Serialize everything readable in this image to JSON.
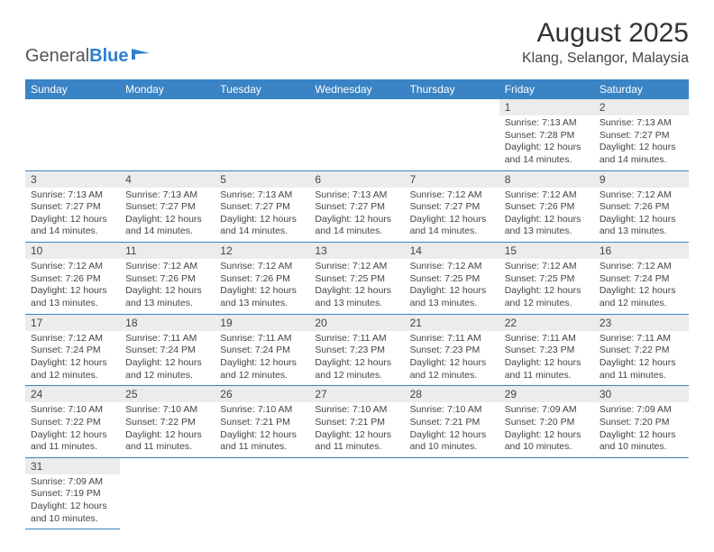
{
  "logo": {
    "part1": "General",
    "part2": "Blue"
  },
  "title": "August 2025",
  "location": "Klang, Selangor, Malaysia",
  "colors": {
    "header_bg": "#3a83c4",
    "header_text": "#ffffff",
    "daynum_bg": "#ececec",
    "border": "#3a83c4",
    "logo_accent": "#2f7fd1"
  },
  "daysOfWeek": [
    "Sunday",
    "Monday",
    "Tuesday",
    "Wednesday",
    "Thursday",
    "Friday",
    "Saturday"
  ],
  "weeks": [
    [
      {
        "n": "",
        "lines": []
      },
      {
        "n": "",
        "lines": []
      },
      {
        "n": "",
        "lines": []
      },
      {
        "n": "",
        "lines": []
      },
      {
        "n": "",
        "lines": []
      },
      {
        "n": "1",
        "lines": [
          "Sunrise: 7:13 AM",
          "Sunset: 7:28 PM",
          "Daylight: 12 hours and 14 minutes."
        ]
      },
      {
        "n": "2",
        "lines": [
          "Sunrise: 7:13 AM",
          "Sunset: 7:27 PM",
          "Daylight: 12 hours and 14 minutes."
        ]
      }
    ],
    [
      {
        "n": "3",
        "lines": [
          "Sunrise: 7:13 AM",
          "Sunset: 7:27 PM",
          "Daylight: 12 hours and 14 minutes."
        ]
      },
      {
        "n": "4",
        "lines": [
          "Sunrise: 7:13 AM",
          "Sunset: 7:27 PM",
          "Daylight: 12 hours and 14 minutes."
        ]
      },
      {
        "n": "5",
        "lines": [
          "Sunrise: 7:13 AM",
          "Sunset: 7:27 PM",
          "Daylight: 12 hours and 14 minutes."
        ]
      },
      {
        "n": "6",
        "lines": [
          "Sunrise: 7:13 AM",
          "Sunset: 7:27 PM",
          "Daylight: 12 hours and 14 minutes."
        ]
      },
      {
        "n": "7",
        "lines": [
          "Sunrise: 7:12 AM",
          "Sunset: 7:27 PM",
          "Daylight: 12 hours and 14 minutes."
        ]
      },
      {
        "n": "8",
        "lines": [
          "Sunrise: 7:12 AM",
          "Sunset: 7:26 PM",
          "Daylight: 12 hours and 13 minutes."
        ]
      },
      {
        "n": "9",
        "lines": [
          "Sunrise: 7:12 AM",
          "Sunset: 7:26 PM",
          "Daylight: 12 hours and 13 minutes."
        ]
      }
    ],
    [
      {
        "n": "10",
        "lines": [
          "Sunrise: 7:12 AM",
          "Sunset: 7:26 PM",
          "Daylight: 12 hours and 13 minutes."
        ]
      },
      {
        "n": "11",
        "lines": [
          "Sunrise: 7:12 AM",
          "Sunset: 7:26 PM",
          "Daylight: 12 hours and 13 minutes."
        ]
      },
      {
        "n": "12",
        "lines": [
          "Sunrise: 7:12 AM",
          "Sunset: 7:26 PM",
          "Daylight: 12 hours and 13 minutes."
        ]
      },
      {
        "n": "13",
        "lines": [
          "Sunrise: 7:12 AM",
          "Sunset: 7:25 PM",
          "Daylight: 12 hours and 13 minutes."
        ]
      },
      {
        "n": "14",
        "lines": [
          "Sunrise: 7:12 AM",
          "Sunset: 7:25 PM",
          "Daylight: 12 hours and 13 minutes."
        ]
      },
      {
        "n": "15",
        "lines": [
          "Sunrise: 7:12 AM",
          "Sunset: 7:25 PM",
          "Daylight: 12 hours and 12 minutes."
        ]
      },
      {
        "n": "16",
        "lines": [
          "Sunrise: 7:12 AM",
          "Sunset: 7:24 PM",
          "Daylight: 12 hours and 12 minutes."
        ]
      }
    ],
    [
      {
        "n": "17",
        "lines": [
          "Sunrise: 7:12 AM",
          "Sunset: 7:24 PM",
          "Daylight: 12 hours and 12 minutes."
        ]
      },
      {
        "n": "18",
        "lines": [
          "Sunrise: 7:11 AM",
          "Sunset: 7:24 PM",
          "Daylight: 12 hours and 12 minutes."
        ]
      },
      {
        "n": "19",
        "lines": [
          "Sunrise: 7:11 AM",
          "Sunset: 7:24 PM",
          "Daylight: 12 hours and 12 minutes."
        ]
      },
      {
        "n": "20",
        "lines": [
          "Sunrise: 7:11 AM",
          "Sunset: 7:23 PM",
          "Daylight: 12 hours and 12 minutes."
        ]
      },
      {
        "n": "21",
        "lines": [
          "Sunrise: 7:11 AM",
          "Sunset: 7:23 PM",
          "Daylight: 12 hours and 12 minutes."
        ]
      },
      {
        "n": "22",
        "lines": [
          "Sunrise: 7:11 AM",
          "Sunset: 7:23 PM",
          "Daylight: 12 hours and 11 minutes."
        ]
      },
      {
        "n": "23",
        "lines": [
          "Sunrise: 7:11 AM",
          "Sunset: 7:22 PM",
          "Daylight: 12 hours and 11 minutes."
        ]
      }
    ],
    [
      {
        "n": "24",
        "lines": [
          "Sunrise: 7:10 AM",
          "Sunset: 7:22 PM",
          "Daylight: 12 hours and 11 minutes."
        ]
      },
      {
        "n": "25",
        "lines": [
          "Sunrise: 7:10 AM",
          "Sunset: 7:22 PM",
          "Daylight: 12 hours and 11 minutes."
        ]
      },
      {
        "n": "26",
        "lines": [
          "Sunrise: 7:10 AM",
          "Sunset: 7:21 PM",
          "Daylight: 12 hours and 11 minutes."
        ]
      },
      {
        "n": "27",
        "lines": [
          "Sunrise: 7:10 AM",
          "Sunset: 7:21 PM",
          "Daylight: 12 hours and 11 minutes."
        ]
      },
      {
        "n": "28",
        "lines": [
          "Sunrise: 7:10 AM",
          "Sunset: 7:21 PM",
          "Daylight: 12 hours and 10 minutes."
        ]
      },
      {
        "n": "29",
        "lines": [
          "Sunrise: 7:09 AM",
          "Sunset: 7:20 PM",
          "Daylight: 12 hours and 10 minutes."
        ]
      },
      {
        "n": "30",
        "lines": [
          "Sunrise: 7:09 AM",
          "Sunset: 7:20 PM",
          "Daylight: 12 hours and 10 minutes."
        ]
      }
    ],
    [
      {
        "n": "31",
        "lines": [
          "Sunrise: 7:09 AM",
          "Sunset: 7:19 PM",
          "Daylight: 12 hours and 10 minutes."
        ]
      },
      {
        "n": "",
        "lines": []
      },
      {
        "n": "",
        "lines": []
      },
      {
        "n": "",
        "lines": []
      },
      {
        "n": "",
        "lines": []
      },
      {
        "n": "",
        "lines": []
      },
      {
        "n": "",
        "lines": []
      }
    ]
  ]
}
